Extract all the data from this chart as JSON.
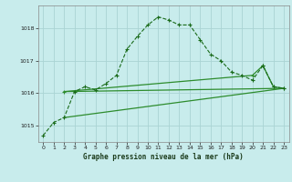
{
  "title": "Graphe pression niveau de la mer (hPa)",
  "bg_color": "#c8ecec",
  "grid_color": "#aad4d4",
  "line_color_main": "#1a6b1a",
  "line_color_secondary": "#2d8c2d",
  "xlim": [
    -0.5,
    23.5
  ],
  "ylim": [
    1014.5,
    1018.7
  ],
  "yticks": [
    1015,
    1016,
    1017,
    1018
  ],
  "xticks": [
    0,
    1,
    2,
    3,
    4,
    5,
    6,
    7,
    8,
    9,
    10,
    11,
    12,
    13,
    14,
    15,
    16,
    17,
    18,
    19,
    20,
    21,
    22,
    23
  ],
  "series1_x": [
    0,
    1,
    2,
    3,
    4,
    5,
    6,
    7,
    8,
    9,
    10,
    11,
    12,
    13,
    14,
    15,
    16,
    17,
    18,
    19,
    20,
    21,
    22,
    23
  ],
  "series1_y": [
    1014.7,
    1015.1,
    1015.25,
    1016.05,
    1016.2,
    1016.1,
    1016.3,
    1016.55,
    1017.35,
    1017.75,
    1018.1,
    1018.35,
    1018.25,
    1018.1,
    1018.1,
    1017.65,
    1017.2,
    1017.0,
    1016.65,
    1016.55,
    1016.4,
    1016.85,
    1016.2,
    1016.15
  ],
  "series2_x": [
    2,
    23
  ],
  "series2_y": [
    1016.05,
    1016.15
  ],
  "series3_x": [
    2,
    23
  ],
  "series3_y": [
    1015.25,
    1016.15
  ],
  "series4_x": [
    2,
    20,
    21,
    22,
    23
  ],
  "series4_y": [
    1016.05,
    1016.55,
    1016.85,
    1016.2,
    1016.15
  ]
}
